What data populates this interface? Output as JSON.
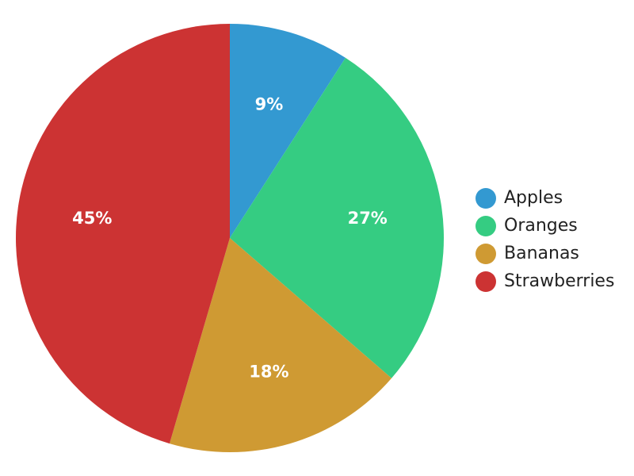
{
  "chart_data": {
    "type": "pie",
    "categories": [
      "Apples",
      "Oranges",
      "Bananas",
      "Strawberries"
    ],
    "values": [
      9,
      27,
      18,
      45
    ],
    "labels": [
      "9%",
      "27%",
      "18%",
      "45%"
    ],
    "colors": [
      "#3399d1",
      "#35cc82",
      "#cf9a33",
      "#cc3333"
    ],
    "legend_position": "right",
    "start_angle": "top, clockwise"
  }
}
